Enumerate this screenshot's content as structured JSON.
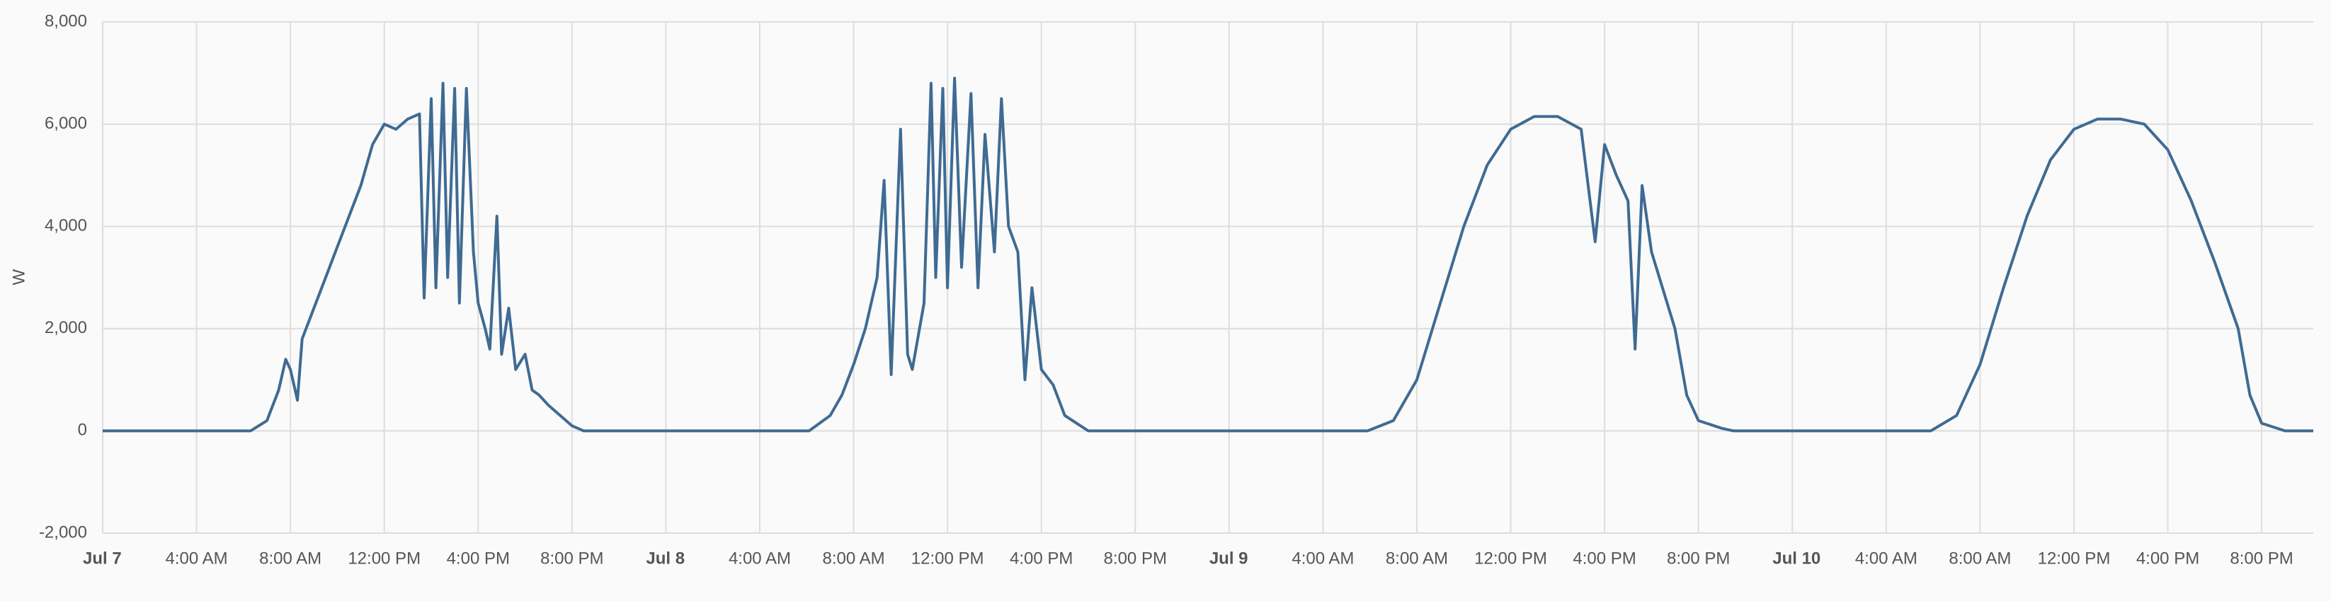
{
  "chart_data": {
    "type": "line",
    "y_label": "W",
    "color": "#3f6b93",
    "grid": true,
    "x": [
      0,
      2,
      4,
      6,
      6.3,
      7,
      7.5,
      7.8,
      8,
      8.3,
      8.5,
      9,
      9.5,
      10,
      10.5,
      11,
      11.5,
      12,
      12.5,
      13,
      13.5,
      13.7,
      14,
      14.2,
      14.5,
      14.7,
      15,
      15.2,
      15.5,
      15.8,
      16,
      16.3,
      16.5,
      16.8,
      17,
      17.3,
      17.6,
      18,
      18.3,
      18.6,
      19,
      19.5,
      20,
      20.5,
      24,
      28,
      30.1,
      31,
      31.5,
      32,
      32.5,
      33,
      33.3,
      33.6,
      34,
      34.3,
      34.5,
      35,
      35.3,
      35.5,
      35.8,
      36,
      36.3,
      36.6,
      37,
      37.3,
      37.6,
      38,
      38.3,
      38.6,
      39,
      39.3,
      39.6,
      40,
      40.5,
      41,
      42,
      44,
      48,
      52,
      53.9,
      55,
      56,
      57,
      58,
      59,
      60,
      61,
      62,
      63,
      63.6,
      64,
      64.5,
      65,
      65.3,
      65.6,
      66,
      67,
      67.5,
      68,
      69,
      69.5,
      72,
      76,
      77.9,
      79,
      80,
      81,
      82,
      83,
      84,
      85,
      86,
      87,
      88,
      89,
      90,
      91,
      91.5,
      92,
      93,
      94.2
    ],
    "values": [
      0,
      0,
      0,
      0,
      0,
      200,
      800,
      1400,
      1200,
      600,
      1800,
      2400,
      3000,
      3600,
      4200,
      4800,
      5600,
      6000,
      5900,
      6100,
      6200,
      2600,
      6500,
      2800,
      6800,
      3000,
      6700,
      2500,
      6700,
      3500,
      2500,
      2000,
      1600,
      4200,
      1500,
      2400,
      1200,
      1500,
      800,
      700,
      500,
      300,
      100,
      0,
      0,
      0,
      0,
      300,
      700,
      1300,
      2000,
      3000,
      4900,
      1100,
      5900,
      1500,
      1200,
      2500,
      6800,
      3000,
      6700,
      2800,
      6900,
      3200,
      6600,
      2800,
      5800,
      3500,
      6500,
      4000,
      3500,
      1000,
      2800,
      1200,
      900,
      300,
      0,
      0,
      0,
      0,
      0,
      200,
      1000,
      2500,
      4000,
      5200,
      5900,
      6150,
      6150,
      5900,
      3700,
      5600,
      5000,
      4500,
      1600,
      4800,
      3500,
      2000,
      700,
      200,
      50,
      0,
      0,
      0,
      0,
      300,
      1300,
      2800,
      4200,
      5300,
      5900,
      6100,
      6100,
      6000,
      5500,
      4500,
      3300,
      2000,
      700,
      150,
      0,
      0
    ],
    "xlim": [
      0,
      94.2
    ],
    "xticks": [
      {
        "value": 0,
        "label": "Jul 7"
      },
      {
        "value": 4,
        "label": "4:00 AM"
      },
      {
        "value": 8,
        "label": "8:00 AM"
      },
      {
        "value": 12,
        "label": "12:00 PM"
      },
      {
        "value": 16,
        "label": "4:00 PM"
      },
      {
        "value": 20,
        "label": "8:00 PM"
      },
      {
        "value": 24,
        "label": "Jul 8"
      },
      {
        "value": 28,
        "label": "4:00 AM"
      },
      {
        "value": 32,
        "label": "8:00 AM"
      },
      {
        "value": 36,
        "label": "12:00 PM"
      },
      {
        "value": 40,
        "label": "4:00 PM"
      },
      {
        "value": 44,
        "label": "8:00 PM"
      },
      {
        "value": 48,
        "label": "Jul 9"
      },
      {
        "value": 52,
        "label": "4:00 AM"
      },
      {
        "value": 56,
        "label": "8:00 AM"
      },
      {
        "value": 60,
        "label": "12:00 PM"
      },
      {
        "value": 64,
        "label": "4:00 PM"
      },
      {
        "value": 68,
        "label": "8:00 PM"
      },
      {
        "value": 72,
        "label": "Jul 10"
      },
      {
        "value": 76,
        "label": "4:00 AM"
      },
      {
        "value": 80,
        "label": "8:00 AM"
      },
      {
        "value": 84,
        "label": "12:00 PM"
      },
      {
        "value": 88,
        "label": "4:00 PM"
      },
      {
        "value": 92,
        "label": "8:00 PM"
      }
    ],
    "ylim": [
      -2000,
      8000
    ],
    "yticks": [
      {
        "value": -2000,
        "label": "-2,000"
      },
      0,
      {
        "value": 2000,
        "label": "2,000"
      },
      {
        "value": 4000,
        "label": "4,000"
      },
      {
        "value": 6000,
        "label": "6,000"
      },
      {
        "value": 8000,
        "label": "8,000"
      }
    ]
  }
}
